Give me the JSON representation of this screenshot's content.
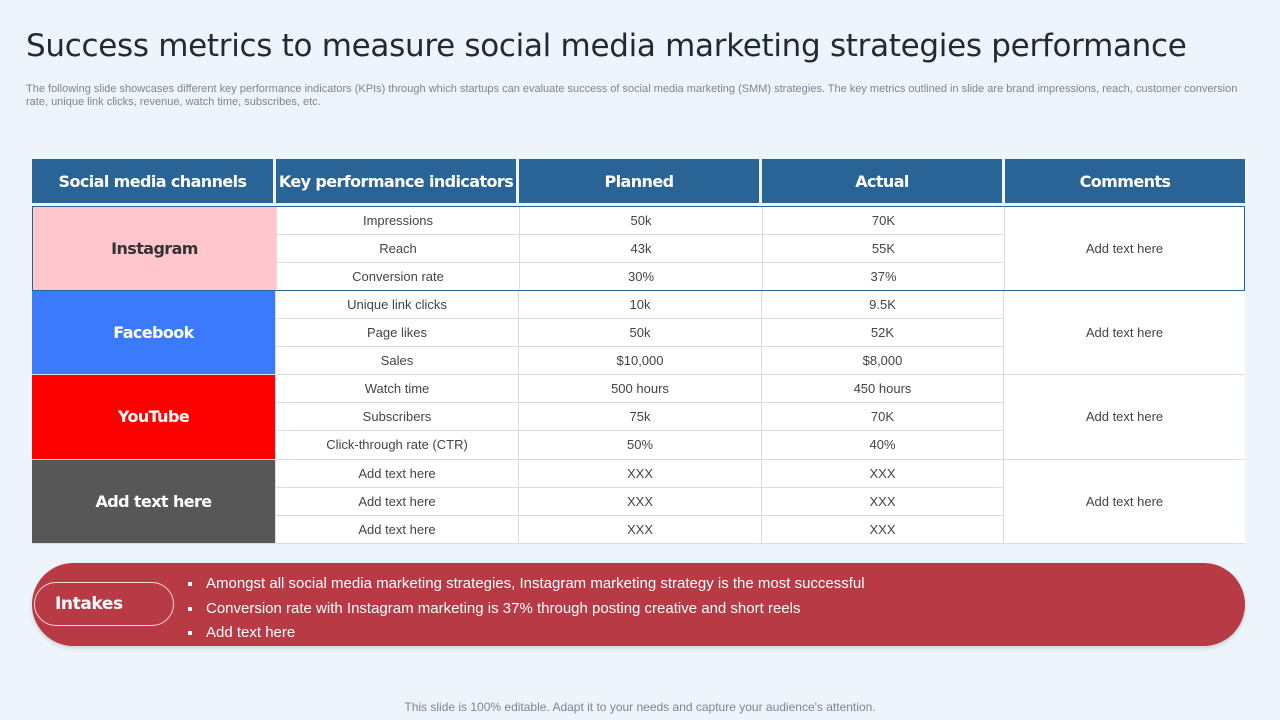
{
  "title": "Success metrics to measure social media marketing strategies performance",
  "subtitle": "The following slide showcases different key performance indicators (KPIs) through which startups can evaluate success of social media marketing (SMM) strategies. The key metrics outlined in slide are brand impressions, reach, customer conversion rate, unique link clicks, revenue, watch time, subscribes, etc.",
  "table": {
    "headers": [
      "Social media channels",
      "Key performance indicators",
      "Planned",
      "Actual",
      "Comments"
    ],
    "groups": [
      {
        "channel": "Instagram",
        "bg": "#ffc7cd",
        "fg": "#333333",
        "comment": "Add text here",
        "rows": [
          {
            "kpi": "Impressions",
            "planned": "50k",
            "actual": "70K"
          },
          {
            "kpi": "Reach",
            "planned": "43k",
            "actual": "55K"
          },
          {
            "kpi": "Conversion  rate",
            "planned": "30%",
            "actual": "37%"
          }
        ]
      },
      {
        "channel": "Facebook",
        "bg": "#3b7bfb",
        "fg": "#ffffff",
        "comment": "Add text here",
        "rows": [
          {
            "kpi": "Unique  link clicks",
            "planned": "10k",
            "actual": "9.5K"
          },
          {
            "kpi": "Page likes",
            "planned": "50k",
            "actual": "52K"
          },
          {
            "kpi": "Sales",
            "planned": "$10,000",
            "actual": "$8,000"
          }
        ]
      },
      {
        "channel": "YouTube",
        "bg": "#fd0000",
        "fg": "#ffffff",
        "comment": "Add text here",
        "rows": [
          {
            "kpi": "Watch time",
            "planned": "500 hours",
            "actual": "450  hours"
          },
          {
            "kpi": "Subscribers",
            "planned": "75k",
            "actual": "70K"
          },
          {
            "kpi": "Click-through  rate (CTR)",
            "planned": "50%",
            "actual": "40%"
          }
        ]
      },
      {
        "channel": "Add text here",
        "bg": "#575757",
        "fg": "#ffffff",
        "comment": "Add text here",
        "rows": [
          {
            "kpi": "Add text here",
            "planned": "XXX",
            "actual": "XXX"
          },
          {
            "kpi": "Add text here",
            "planned": "XXX",
            "actual": "XXX"
          },
          {
            "kpi": "Add text here",
            "planned": "XXX",
            "actual": "XXX"
          }
        ]
      }
    ]
  },
  "intakes": {
    "label": "Intakes",
    "bullets": [
      "Amongst all social media marketing strategies, Instagram  marketing strategy  is the most successful",
      "Conversion rate with Instagram marketing is 37% through  posting creative and short reels",
      "Add text here"
    ]
  },
  "footer": "This slide is 100% editable. Adapt it to your needs and capture your audience's attention."
}
